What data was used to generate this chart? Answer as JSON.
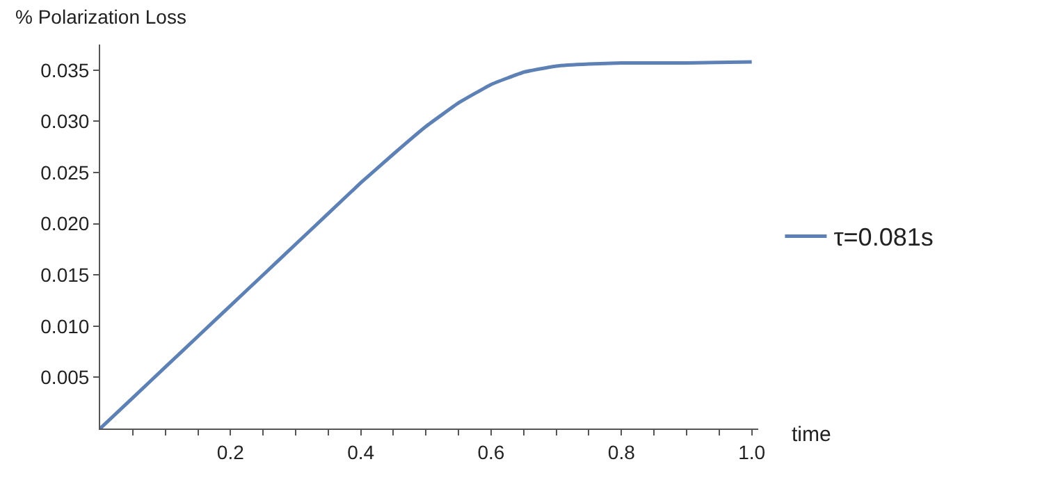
{
  "chart_data": {
    "type": "line",
    "xlabel": "time",
    "ylabel": "% Polarization Loss",
    "x": [
      0,
      0.05,
      0.1,
      0.15,
      0.2,
      0.25,
      0.3,
      0.35,
      0.4,
      0.45,
      0.5,
      0.55,
      0.6,
      0.65,
      0.7,
      0.75,
      0.8,
      0.9,
      1.0
    ],
    "series": [
      {
        "name": "τ=0.081s",
        "color": "#5e81b5",
        "values": [
          0,
          0.003,
          0.006,
          0.009,
          0.012,
          0.015,
          0.018,
          0.021,
          0.024,
          0.0268,
          0.0295,
          0.0318,
          0.0336,
          0.0348,
          0.0354,
          0.0356,
          0.0357,
          0.0357,
          0.0358
        ]
      }
    ],
    "xlim": [
      0,
      1.01
    ],
    "ylim": [
      0,
      0.0375
    ],
    "xticks": [
      {
        "value": 0.05,
        "label": null
      },
      {
        "value": 0.1,
        "label": null
      },
      {
        "value": 0.15,
        "label": null
      },
      {
        "value": 0.2,
        "label": "0.2"
      },
      {
        "value": 0.25,
        "label": null
      },
      {
        "value": 0.3,
        "label": null
      },
      {
        "value": 0.35,
        "label": null
      },
      {
        "value": 0.4,
        "label": "0.4"
      },
      {
        "value": 0.45,
        "label": null
      },
      {
        "value": 0.5,
        "label": null
      },
      {
        "value": 0.55,
        "label": null
      },
      {
        "value": 0.6,
        "label": "0.6"
      },
      {
        "value": 0.65,
        "label": null
      },
      {
        "value": 0.7,
        "label": null
      },
      {
        "value": 0.75,
        "label": null
      },
      {
        "value": 0.8,
        "label": "0.8"
      },
      {
        "value": 0.85,
        "label": null
      },
      {
        "value": 0.9,
        "label": null
      },
      {
        "value": 0.95,
        "label": null
      },
      {
        "value": 1.0,
        "label": "1.0"
      }
    ],
    "yticks": [
      {
        "value": 0.005,
        "label": "0.005"
      },
      {
        "value": 0.01,
        "label": "0.010"
      },
      {
        "value": 0.015,
        "label": "0.015"
      },
      {
        "value": 0.02,
        "label": "0.020"
      },
      {
        "value": 0.025,
        "label": "0.025"
      },
      {
        "value": 0.03,
        "label": "0.030"
      },
      {
        "value": 0.035,
        "label": "0.035"
      }
    ],
    "legend": "right",
    "marker": "none",
    "line_style": "solid"
  }
}
